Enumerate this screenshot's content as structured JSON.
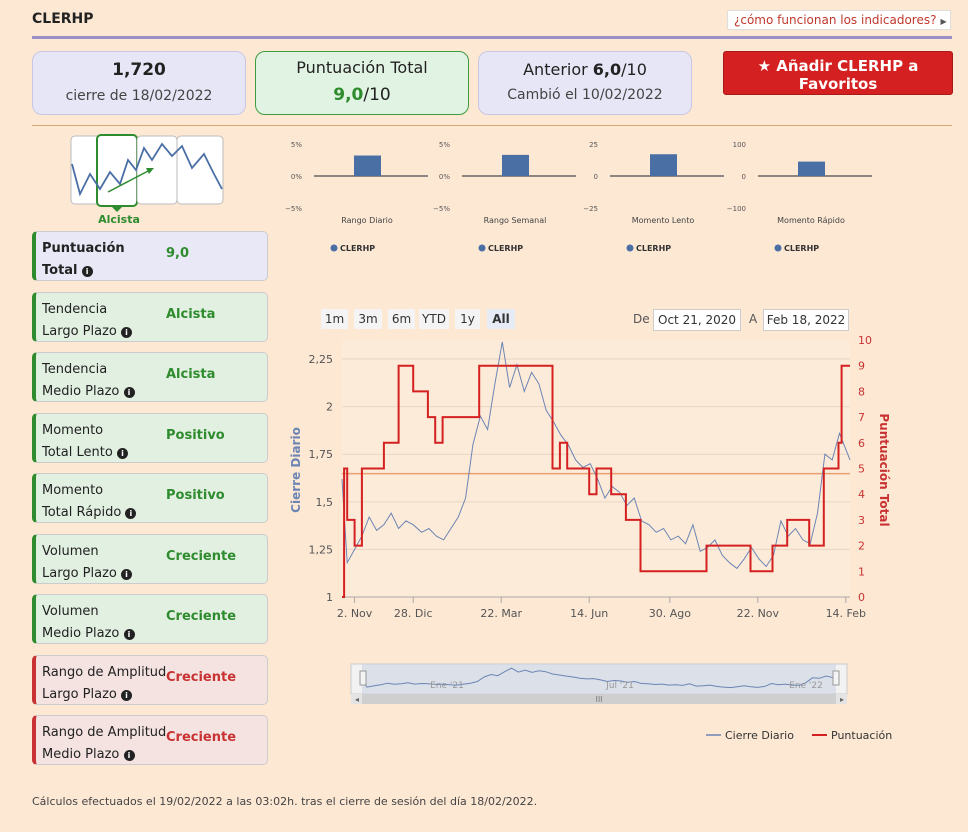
{
  "header": {
    "title": "CLERHP",
    "help_link": "¿cómo funcionan los indicadores?"
  },
  "cards": {
    "price": {
      "value": "1,720",
      "caption": "cierre de 18/02/2022"
    },
    "total": {
      "label": "Puntuación Total",
      "score": "9,0",
      "out_of": "/10"
    },
    "previous": {
      "label": "Anterior",
      "score": "6,0",
      "out_of": "/10",
      "caption": "Cambió el 10/02/2022"
    }
  },
  "favorite_button": {
    "label": "Añadir CLERHP a Favoritos"
  },
  "trend_widget": {
    "label": "Alcista"
  },
  "indicators": [
    {
      "line1": "Puntuación",
      "line2": "Total",
      "value": "9,0",
      "tone": "blue"
    },
    {
      "line1": "Tendencia",
      "line2": "Largo Plazo",
      "value": "Alcista",
      "tone": "green"
    },
    {
      "line1": "Tendencia",
      "line2": "Medio Plazo",
      "value": "Alcista",
      "tone": "green"
    },
    {
      "line1": "Momento",
      "line2": "Total Lento",
      "value": "Positivo",
      "tone": "green"
    },
    {
      "line1": "Momento",
      "line2": "Total Rápido",
      "value": "Positivo",
      "tone": "green"
    },
    {
      "line1": "Volumen",
      "line2": "Largo Plazo",
      "value": "Creciente",
      "tone": "green"
    },
    {
      "line1": "Volumen",
      "line2": "Medio Plazo",
      "value": "Creciente",
      "tone": "green"
    },
    {
      "line1": "Rango de Amplitud",
      "line2": "Largo Plazo",
      "value": "Creciente",
      "tone": "red"
    },
    {
      "line1": "Rango de Amplitud",
      "line2": "Medio Plazo",
      "value": "Creciente",
      "tone": "red"
    }
  ],
  "range_selector": {
    "buttons": [
      "1m",
      "3m",
      "6m",
      "YTD",
      "1y",
      "All"
    ],
    "active": "All",
    "from_label": "De",
    "from": "Oct 21, 2020",
    "to_label": "A",
    "to": "Feb 18, 2022"
  },
  "footnote": "Cálculos efectuados el 19/02/2022 a las 03:02h. tras el cierre de sesión del día 18/02/2022.",
  "colors": {
    "price_line": "#6b85b5",
    "score_line": "#d42020",
    "bar": "#4a6fa5",
    "accent_green": "#2e8b2e"
  },
  "chart_data": [
    {
      "type": "bar",
      "title": "",
      "xlabel": "Rango Diario",
      "yticks": [
        "5%",
        "0%",
        "−5%"
      ],
      "ylim": [
        -5,
        5
      ],
      "values": [
        3.2
      ],
      "legend": [
        "CLERHP"
      ]
    },
    {
      "type": "bar",
      "title": "",
      "xlabel": "Rango Semanal",
      "yticks": [
        "5%",
        "0%",
        "−5%"
      ],
      "ylim": [
        -5,
        5
      ],
      "values": [
        3.3
      ],
      "legend": [
        "CLERHP"
      ]
    },
    {
      "type": "bar",
      "title": "",
      "xlabel": "Momento Lento",
      "yticks": [
        "25",
        "0",
        "−25"
      ],
      "ylim": [
        -25,
        25
      ],
      "values": [
        17
      ],
      "legend": [
        "CLERHP"
      ]
    },
    {
      "type": "bar",
      "title": "",
      "xlabel": "Momento Rápido",
      "yticks": [
        "100",
        "0",
        "−100"
      ],
      "ylim": [
        -100,
        100
      ],
      "values": [
        45
      ],
      "legend": [
        "CLERHP"
      ]
    },
    {
      "type": "line",
      "title": "",
      "ylabel": "Cierre Diario",
      "y2label": "Puntuación Total",
      "xticks": [
        "2. Nov",
        "28. Dic",
        "22. Mar",
        "14. Jun",
        "30. Ago",
        "22. Nov",
        "14. Feb"
      ],
      "yticks": [
        "1",
        "1,25",
        "1,5",
        "1,75",
        "2",
        "2,25"
      ],
      "y2ticks": [
        "0",
        "1",
        "2",
        "3",
        "4",
        "5",
        "6",
        "7",
        "8",
        "9",
        "10"
      ],
      "ylim": [
        1,
        2.35
      ],
      "y2lim": [
        0,
        10
      ],
      "xlim": [
        "2020-10-21",
        "2022-02-18"
      ],
      "reference_level": 4.8,
      "navigator_ticks": [
        "Ene '21",
        "Jul '21",
        "Ene '22"
      ],
      "series": [
        {
          "name": "Cierre Diario",
          "x": [
            "2020-10-21",
            "2020-10-26",
            "2020-11-02",
            "2020-11-09",
            "2020-11-16",
            "2020-11-23",
            "2020-11-30",
            "2020-12-07",
            "2020-12-14",
            "2020-12-21",
            "2020-12-28",
            "2021-01-05",
            "2021-01-12",
            "2021-01-19",
            "2021-01-26",
            "2021-02-02",
            "2021-02-09",
            "2021-02-16",
            "2021-02-23",
            "2021-03-02",
            "2021-03-09",
            "2021-03-16",
            "2021-03-23",
            "2021-03-30",
            "2021-04-06",
            "2021-04-13",
            "2021-04-20",
            "2021-04-27",
            "2021-05-04",
            "2021-05-11",
            "2021-05-18",
            "2021-05-25",
            "2021-06-01",
            "2021-06-08",
            "2021-06-15",
            "2021-06-22",
            "2021-06-29",
            "2021-07-06",
            "2021-07-13",
            "2021-07-20",
            "2021-07-27",
            "2021-08-03",
            "2021-08-10",
            "2021-08-17",
            "2021-08-24",
            "2021-08-31",
            "2021-09-07",
            "2021-09-14",
            "2021-09-21",
            "2021-09-28",
            "2021-10-05",
            "2021-10-12",
            "2021-10-19",
            "2021-10-26",
            "2021-11-02",
            "2021-11-09",
            "2021-11-16",
            "2021-11-23",
            "2021-11-30",
            "2021-12-07",
            "2021-12-14",
            "2021-12-21",
            "2021-12-28",
            "2022-01-04",
            "2022-01-11",
            "2022-01-18",
            "2022-01-25",
            "2022-02-01",
            "2022-02-08",
            "2022-02-18"
          ],
          "y": [
            1.62,
            1.18,
            1.25,
            1.32,
            1.42,
            1.35,
            1.38,
            1.44,
            1.36,
            1.4,
            1.38,
            1.34,
            1.36,
            1.32,
            1.3,
            1.36,
            1.42,
            1.52,
            1.8,
            1.95,
            1.88,
            2.12,
            2.34,
            2.1,
            2.22,
            2.08,
            2.18,
            2.12,
            1.98,
            1.92,
            1.85,
            1.8,
            1.72,
            1.68,
            1.7,
            1.62,
            1.52,
            1.58,
            1.55,
            1.48,
            1.52,
            1.4,
            1.38,
            1.34,
            1.36,
            1.3,
            1.32,
            1.28,
            1.38,
            1.24,
            1.26,
            1.3,
            1.22,
            1.18,
            1.15,
            1.2,
            1.26,
            1.2,
            1.16,
            1.22,
            1.4,
            1.32,
            1.36,
            1.3,
            1.28,
            1.44,
            1.75,
            1.72,
            1.86,
            1.72
          ]
        },
        {
          "name": "Puntuación",
          "x": [
            "2020-10-21",
            "2020-10-23",
            "2020-10-26",
            "2020-11-02",
            "2020-11-09",
            "2020-11-16",
            "2020-11-23",
            "2020-11-30",
            "2020-12-14",
            "2020-12-28",
            "2021-01-11",
            "2021-01-18",
            "2021-01-25",
            "2021-02-01",
            "2021-02-08",
            "2021-02-15",
            "2021-02-22",
            "2021-03-01",
            "2021-04-05",
            "2021-05-03",
            "2021-05-10",
            "2021-05-17",
            "2021-05-24",
            "2021-06-07",
            "2021-06-14",
            "2021-06-21",
            "2021-07-05",
            "2021-07-12",
            "2021-07-19",
            "2021-07-26",
            "2021-08-02",
            "2021-09-06",
            "2021-09-20",
            "2021-10-04",
            "2021-11-15",
            "2021-11-29",
            "2021-12-06",
            "2021-12-20",
            "2021-12-27",
            "2022-01-10",
            "2022-01-24",
            "2022-02-07",
            "2022-02-10",
            "2022-02-18"
          ],
          "y": [
            0,
            5,
            3,
            2,
            5,
            5,
            5,
            6,
            9,
            8,
            7,
            6,
            7,
            7,
            7,
            7,
            7,
            9,
            9,
            9,
            5,
            6,
            5,
            5,
            4,
            5,
            4,
            4,
            3,
            3,
            1,
            1,
            1,
            2,
            1,
            1,
            2,
            3,
            3,
            2,
            5,
            6,
            9,
            9
          ]
        }
      ]
    }
  ]
}
